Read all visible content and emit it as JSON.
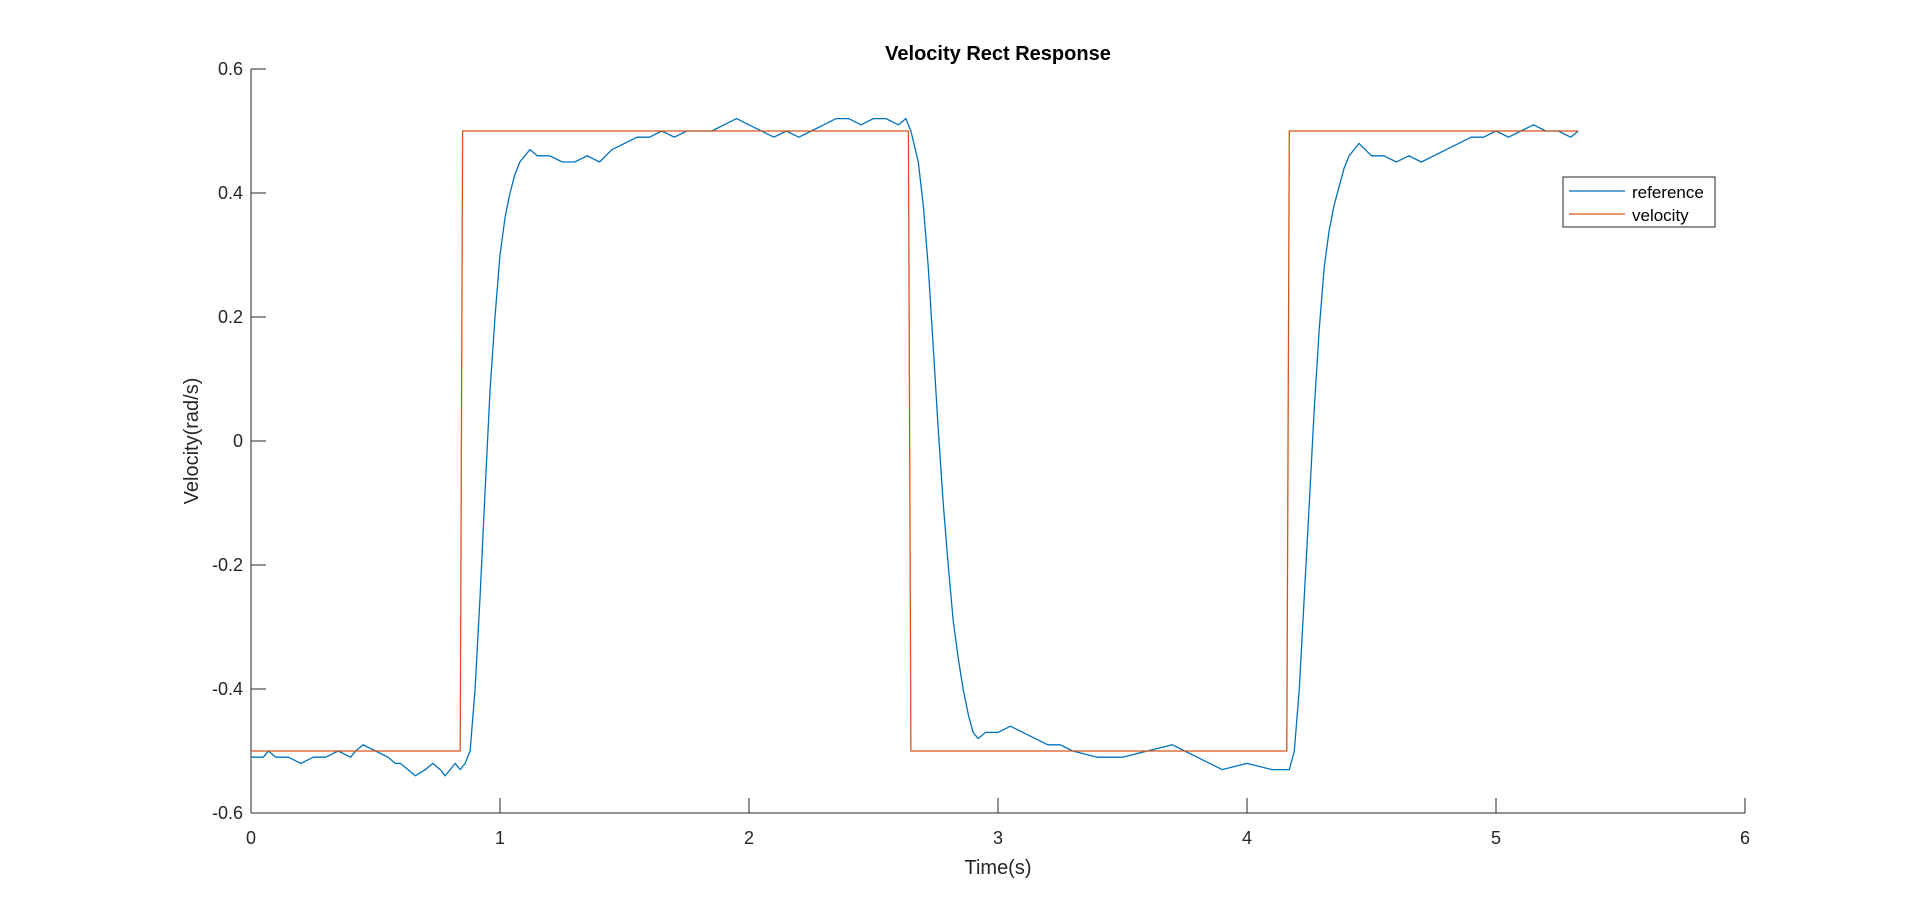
{
  "chart_data": {
    "type": "line",
    "title": "Velocity Rect Response",
    "xlabel": "Time(s)",
    "ylabel": "Velocity(rad/s)",
    "xlim": [
      0,
      6
    ],
    "ylim": [
      -0.6,
      0.6
    ],
    "xticks": [
      0,
      1,
      2,
      3,
      4,
      5,
      6
    ],
    "yticks": [
      -0.6,
      -0.4,
      -0.2,
      0,
      0.2,
      0.4,
      0.6
    ],
    "xtick_labels": [
      "0",
      "1",
      "2",
      "3",
      "4",
      "5",
      "6"
    ],
    "ytick_labels": [
      "-0.6",
      "-0.4",
      "-0.2",
      "0",
      "0.2",
      "0.4",
      "0.6"
    ],
    "grid": false,
    "legend_position": "top-right",
    "colors": {
      "reference": "#0072BD",
      "velocity": "#D95319",
      "axis": "#262626"
    },
    "series": [
      {
        "name": "reference",
        "x": [
          0.0,
          0.05,
          0.07,
          0.1,
          0.15,
          0.2,
          0.25,
          0.3,
          0.35,
          0.4,
          0.42,
          0.45,
          0.5,
          0.55,
          0.58,
          0.6,
          0.63,
          0.66,
          0.7,
          0.73,
          0.76,
          0.78,
          0.8,
          0.82,
          0.84,
          0.86,
          0.88,
          0.9,
          0.92,
          0.94,
          0.96,
          0.98,
          1.0,
          1.02,
          1.04,
          1.06,
          1.08,
          1.1,
          1.12,
          1.15,
          1.2,
          1.25,
          1.3,
          1.35,
          1.4,
          1.45,
          1.5,
          1.55,
          1.6,
          1.65,
          1.7,
          1.75,
          1.8,
          1.85,
          1.9,
          1.95,
          2.0,
          2.05,
          2.1,
          2.15,
          2.2,
          2.25,
          2.3,
          2.35,
          2.4,
          2.45,
          2.5,
          2.55,
          2.6,
          2.63,
          2.65,
          2.68,
          2.7,
          2.72,
          2.74,
          2.76,
          2.78,
          2.8,
          2.82,
          2.84,
          2.86,
          2.88,
          2.9,
          2.92,
          2.95,
          3.0,
          3.05,
          3.1,
          3.15,
          3.2,
          3.25,
          3.3,
          3.4,
          3.5,
          3.6,
          3.7,
          3.75,
          3.8,
          3.85,
          3.9,
          4.0,
          4.1,
          4.15,
          4.17,
          4.19,
          4.21,
          4.23,
          4.25,
          4.27,
          4.29,
          4.31,
          4.33,
          4.35,
          4.37,
          4.39,
          4.41,
          4.43,
          4.45,
          4.5,
          4.55,
          4.6,
          4.65,
          4.7,
          4.75,
          4.8,
          4.85,
          4.9,
          4.95,
          5.0,
          5.05,
          5.1,
          5.15,
          5.2,
          5.25,
          5.3,
          5.33
        ],
        "y": [
          -0.51,
          -0.51,
          -0.5,
          -0.51,
          -0.51,
          -0.52,
          -0.51,
          -0.51,
          -0.5,
          -0.51,
          -0.5,
          -0.49,
          -0.5,
          -0.51,
          -0.52,
          -0.52,
          -0.53,
          -0.54,
          -0.53,
          -0.52,
          -0.53,
          -0.54,
          -0.53,
          -0.52,
          -0.53,
          -0.52,
          -0.5,
          -0.4,
          -0.25,
          -0.08,
          0.08,
          0.2,
          0.3,
          0.36,
          0.4,
          0.43,
          0.45,
          0.46,
          0.47,
          0.46,
          0.46,
          0.45,
          0.45,
          0.46,
          0.45,
          0.47,
          0.48,
          0.49,
          0.49,
          0.5,
          0.49,
          0.5,
          0.5,
          0.5,
          0.51,
          0.52,
          0.51,
          0.5,
          0.49,
          0.5,
          0.49,
          0.5,
          0.51,
          0.52,
          0.52,
          0.51,
          0.52,
          0.52,
          0.51,
          0.52,
          0.5,
          0.45,
          0.38,
          0.28,
          0.15,
          0.02,
          -0.1,
          -0.2,
          -0.29,
          -0.35,
          -0.4,
          -0.44,
          -0.47,
          -0.48,
          -0.47,
          -0.47,
          -0.46,
          -0.47,
          -0.48,
          -0.49,
          -0.49,
          -0.5,
          -0.51,
          -0.51,
          -0.5,
          -0.49,
          -0.5,
          -0.51,
          -0.52,
          -0.53,
          -0.52,
          -0.53,
          -0.53,
          -0.53,
          -0.5,
          -0.4,
          -0.25,
          -0.1,
          0.05,
          0.18,
          0.28,
          0.34,
          0.38,
          0.41,
          0.44,
          0.46,
          0.47,
          0.48,
          0.46,
          0.46,
          0.45,
          0.46,
          0.45,
          0.46,
          0.47,
          0.48,
          0.49,
          0.49,
          0.5,
          0.49,
          0.5,
          0.51,
          0.5,
          0.5,
          0.49,
          0.5
        ],
        "color": "#0072BD"
      },
      {
        "name": "velocity",
        "x": [
          0.0,
          0.84,
          0.85,
          2.64,
          2.65,
          4.16,
          4.17,
          5.33
        ],
        "y": [
          -0.5,
          -0.5,
          0.5,
          0.5,
          -0.5,
          -0.5,
          0.5,
          0.5
        ],
        "color": "#D95319"
      }
    ]
  }
}
